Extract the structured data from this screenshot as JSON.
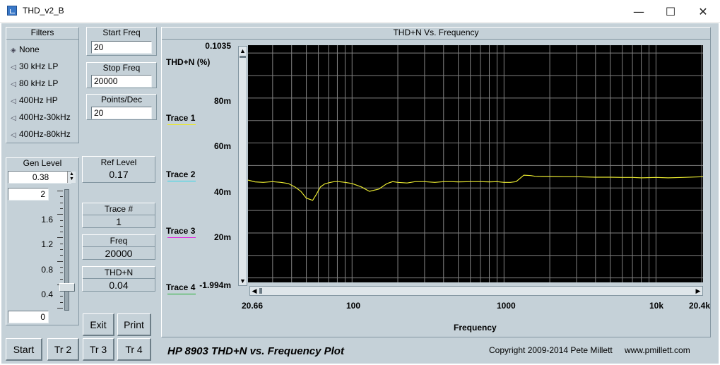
{
  "window": {
    "title": "THD_v2_B",
    "minimize": "—",
    "maximize": "☐",
    "close": "✕"
  },
  "filters": {
    "title": "Filters",
    "options": [
      "None",
      "30 kHz LP",
      "80 kHz LP",
      "400Hz HP",
      "400Hz-30kHz",
      "400Hz-80kHz"
    ],
    "selected": "None"
  },
  "start_freq": {
    "label": "Start Freq",
    "value": "20"
  },
  "stop_freq": {
    "label": "Stop Freq",
    "value": "20000"
  },
  "points_dec": {
    "label": "Points/Dec",
    "value": "20"
  },
  "gen_level": {
    "label": "Gen Level",
    "value": "0.38",
    "slider_max": "2",
    "slider_min": "0",
    "ticks": [
      "1.6",
      "1.2",
      "0.8",
      "0.4"
    ],
    "slider_fraction": 0.19
  },
  "readouts": {
    "ref_level": {
      "label": "Ref Level",
      "value": "0.17"
    },
    "trace_num": {
      "label": "Trace #",
      "value": "1"
    },
    "freq": {
      "label": "Freq",
      "value": "20000"
    },
    "thdn": {
      "label": "THD+N",
      "value": "0.04"
    }
  },
  "buttons": {
    "exit": "Exit",
    "print": "Print",
    "start": "Start",
    "tr2": "Tr 2",
    "tr3": "Tr 3",
    "tr4": "Tr 4"
  },
  "plot": {
    "title": "THD+N Vs. Frequency",
    "y_top_label": "0.1035",
    "y_unit_label": "THD+N (%)",
    "y_ticks": [
      "80m",
      "60m",
      "40m",
      "20m"
    ],
    "y_bottom_label": "-1.994m",
    "x_ticks": [
      "20.66",
      "100",
      "1000",
      "10k",
      "20.4k"
    ],
    "xlabel": "Frequency",
    "traces": [
      {
        "label": "Trace 1",
        "color": "#e8e830"
      },
      {
        "label": "Trace 2",
        "color": "#30d8e8"
      },
      {
        "label": "Trace 3",
        "color": "#e030e0"
      },
      {
        "label": "Trace 4",
        "color": "#20b030"
      }
    ],
    "background": "#000000",
    "grid_color": "#808080"
  },
  "footer": {
    "heading": "HP 8903 THD+N vs. Frequency Plot",
    "copyright": "Copyright 2009-2014 Pete Millett",
    "website": "www.pmillett.com"
  },
  "chart_data": {
    "type": "line",
    "title": "THD+N Vs. Frequency",
    "xlabel": "Frequency",
    "ylabel": "THD+N (%)",
    "xscale": "log",
    "xlim": [
      20.66,
      20400
    ],
    "ylim": [
      -0.001994,
      0.1035
    ],
    "grid": true,
    "series": [
      {
        "name": "Trace 1",
        "color": "#e8e830",
        "x": [
          20.66,
          23,
          26,
          30,
          34,
          38,
          42,
          46,
          50,
          55,
          58,
          62,
          66,
          70,
          76,
          82,
          90,
          100,
          115,
          130,
          150,
          170,
          185,
          200,
          230,
          260,
          300,
          350,
          400,
          450,
          500,
          600,
          700,
          800,
          900,
          1000,
          1100,
          1200,
          1350,
          1500,
          1600,
          1800,
          2000,
          2500,
          3000,
          4000,
          5000,
          6000,
          7000,
          8000,
          10000,
          12000,
          15000,
          20400
        ],
        "y": [
          0.0435,
          0.0427,
          0.0425,
          0.0428,
          0.0425,
          0.042,
          0.0405,
          0.0385,
          0.0355,
          0.0345,
          0.037,
          0.0405,
          0.0418,
          0.0423,
          0.0428,
          0.0428,
          0.0425,
          0.042,
          0.0405,
          0.0385,
          0.0395,
          0.042,
          0.0428,
          0.0425,
          0.0422,
          0.0428,
          0.0428,
          0.0425,
          0.0428,
          0.0428,
          0.0427,
          0.0428,
          0.0428,
          0.0427,
          0.0428,
          0.0425,
          0.0425,
          0.0428,
          0.0457,
          0.0455,
          0.0452,
          0.0451,
          0.0451,
          0.045,
          0.045,
          0.0448,
          0.0448,
          0.0447,
          0.0447,
          0.0445,
          0.0447,
          0.0445,
          0.0447,
          0.045
        ]
      }
    ]
  }
}
